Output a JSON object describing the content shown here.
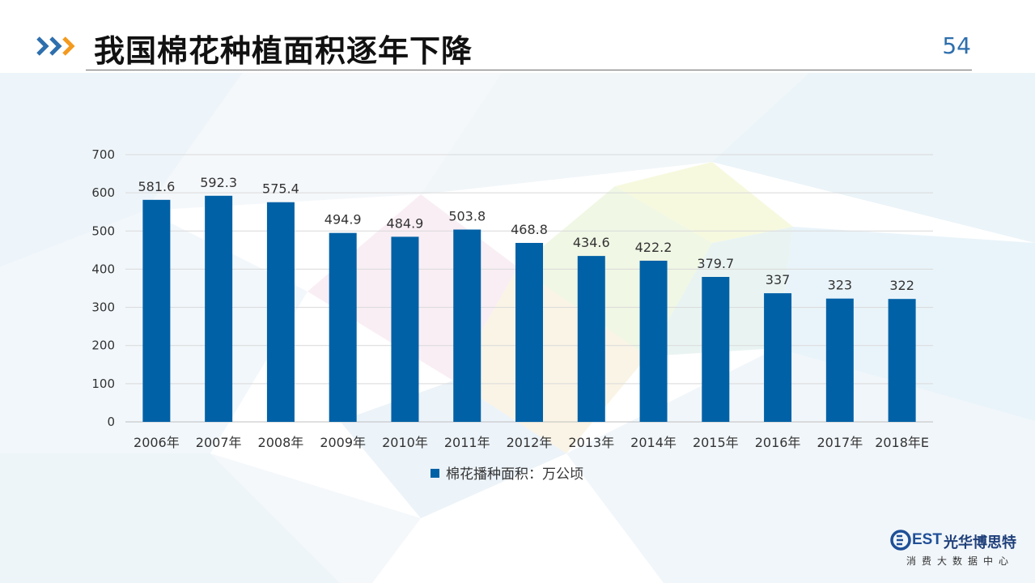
{
  "slide": {
    "title": "我国棉花种植面积逐年下降",
    "page_number": "54"
  },
  "logo": {
    "brand_latin": "EST",
    "brand_cn": "光华博思特",
    "subtitle": "消费大数据中心"
  },
  "colors": {
    "bar": "#0061a6",
    "accent_orange": "#f39a1f",
    "accent_blue": "#2e6fad"
  },
  "chart_data": {
    "type": "bar",
    "categories": [
      "2006年",
      "2007年",
      "2008年",
      "2009年",
      "2010年",
      "2011年",
      "2012年",
      "2013年",
      "2014年",
      "2015年",
      "2016年",
      "2017年",
      "2018年E"
    ],
    "series": [
      {
        "name": "棉花播种面积：万公顷",
        "values": [
          581.6,
          592.3,
          575.4,
          494.9,
          484.9,
          503.8,
          468.8,
          434.6,
          422.2,
          379.7,
          337,
          323,
          322
        ],
        "labels": [
          "581.6",
          "592.3",
          "575.4",
          "494.9",
          "484.9",
          "503.8",
          "468.8",
          "434.6",
          "422.2",
          "379.7",
          "337",
          "323",
          "322"
        ]
      }
    ],
    "ylim": [
      0,
      700
    ],
    "yticks": [
      "0",
      "100",
      "200",
      "300",
      "400",
      "500",
      "600",
      "700"
    ],
    "grid": true,
    "legend_position": "bottom"
  }
}
